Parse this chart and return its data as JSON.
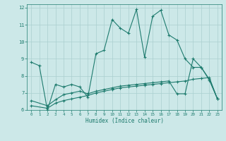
{
  "xlabel": "Humidex (Indice chaleur)",
  "bg_color": "#cce8e8",
  "grid_color": "#aacfcf",
  "line_color": "#1e7b6e",
  "xlim": [
    -0.5,
    23.5
  ],
  "ylim": [
    6,
    12.2
  ],
  "yticks": [
    6,
    7,
    8,
    9,
    10,
    11,
    12
  ],
  "xticks": [
    0,
    1,
    2,
    3,
    4,
    5,
    6,
    7,
    8,
    9,
    10,
    11,
    12,
    13,
    14,
    15,
    16,
    17,
    18,
    19,
    20,
    21,
    22,
    23
  ],
  "s1_x": [
    0,
    1,
    2,
    3,
    4,
    5,
    6,
    7,
    8,
    9,
    10,
    11,
    12,
    13,
    14,
    15,
    16,
    17,
    18,
    19,
    20,
    21,
    22,
    23
  ],
  "s1_y": [
    8.8,
    8.6,
    6.0,
    7.5,
    7.35,
    7.5,
    7.35,
    6.75,
    9.3,
    9.5,
    11.3,
    10.8,
    10.5,
    11.9,
    9.1,
    11.5,
    11.85,
    10.4,
    10.1,
    9.0,
    8.5,
    8.5,
    7.8,
    6.65
  ],
  "s2_x": [
    0,
    2,
    3,
    4,
    5,
    6,
    7,
    8,
    9,
    10,
    11,
    12,
    13,
    14,
    15,
    16,
    17,
    18,
    19,
    20,
    21,
    22,
    23
  ],
  "s2_y": [
    6.25,
    6.1,
    6.4,
    6.55,
    6.65,
    6.75,
    6.85,
    7.0,
    7.1,
    7.2,
    7.3,
    7.35,
    7.4,
    7.45,
    7.5,
    7.55,
    7.6,
    7.65,
    7.7,
    7.8,
    7.85,
    7.9,
    6.65
  ],
  "s3_x": [
    0,
    2,
    3,
    4,
    5,
    6,
    7,
    8,
    9,
    10,
    11,
    12,
    13,
    14,
    15,
    16,
    17,
    18,
    19,
    20,
    21,
    22,
    23
  ],
  "s3_y": [
    6.55,
    6.25,
    6.6,
    6.9,
    7.0,
    7.1,
    6.95,
    7.1,
    7.2,
    7.3,
    7.4,
    7.45,
    7.5,
    7.55,
    7.6,
    7.65,
    7.7,
    6.95,
    6.95,
    9.0,
    8.5,
    7.75,
    6.65
  ]
}
